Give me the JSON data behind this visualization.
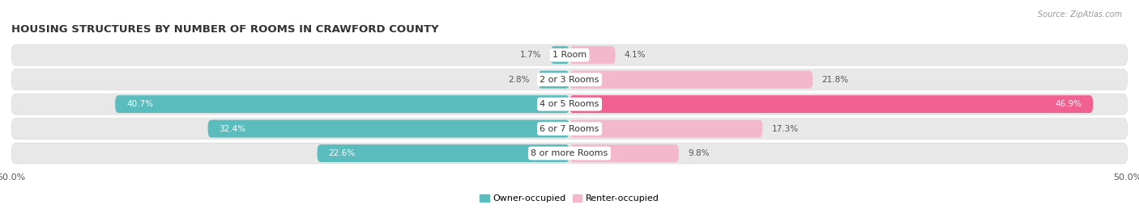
{
  "title": "HOUSING STRUCTURES BY NUMBER OF ROOMS IN CRAWFORD COUNTY",
  "source": "Source: ZipAtlas.com",
  "categories": [
    "1 Room",
    "2 or 3 Rooms",
    "4 or 5 Rooms",
    "6 or 7 Rooms",
    "8 or more Rooms"
  ],
  "owner_values": [
    1.7,
    2.8,
    40.7,
    32.4,
    22.6
  ],
  "renter_values": [
    4.1,
    21.8,
    46.9,
    17.3,
    9.8
  ],
  "owner_color": "#5bbcbe",
  "renter_color_light": "#f4b8cc",
  "renter_color_dark": "#f06090",
  "bar_bg_color": "#e8e8e8",
  "bg_stroke_color": "#d0d0d0",
  "xlim_left": -50,
  "xlim_right": 50,
  "bar_height": 0.72,
  "bg_bar_height": 0.85,
  "title_fontsize": 9.5,
  "label_fontsize": 8,
  "value_fontsize": 7.5,
  "tick_fontsize": 8,
  "source_fontsize": 7,
  "fig_width": 14.06,
  "fig_height": 2.69,
  "dpi": 100,
  "renter_dark_threshold": 40
}
